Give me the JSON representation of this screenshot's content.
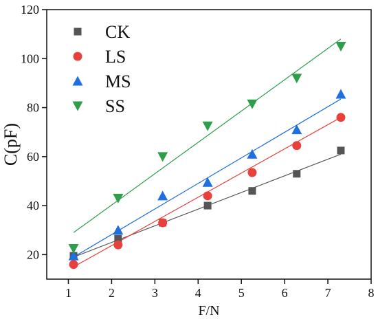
{
  "chart_data": {
    "type": "scatter",
    "xlabel": "F/N",
    "ylabel": "C(pF)",
    "xlim": [
      0.5,
      8
    ],
    "ylim": [
      10,
      120
    ],
    "x_ticks": [
      1,
      2,
      3,
      4,
      5,
      6,
      7,
      8
    ],
    "y_ticks": [
      20,
      40,
      60,
      80,
      100,
      120
    ],
    "legend_position": "top-left",
    "grid": false,
    "series": [
      {
        "name": "CK",
        "color": "#555555",
        "marker": "square",
        "x": [
          1.12,
          2.15,
          3.18,
          4.22,
          5.25,
          6.28,
          7.3
        ],
        "y": [
          19.5,
          26.5,
          33,
          40,
          46,
          53,
          62.5
        ],
        "fit": [
          [
            1.12,
            19
          ],
          [
            7.3,
            61
          ]
        ]
      },
      {
        "name": "LS",
        "color": "#e8413b",
        "marker": "circle",
        "x": [
          1.12,
          2.15,
          3.18,
          4.22,
          5.25,
          6.28,
          7.3
        ],
        "y": [
          16,
          24,
          33,
          44,
          53.5,
          64.5,
          76
        ],
        "fit": [
          [
            1.12,
            15
          ],
          [
            7.3,
            76
          ]
        ]
      },
      {
        "name": "MS",
        "color": "#1f6fe0",
        "marker": "triangle-up",
        "x": [
          1.12,
          2.15,
          3.18,
          4.22,
          5.25,
          6.28,
          7.3
        ],
        "y": [
          19.5,
          30,
          44,
          49.5,
          61,
          71,
          85.5
        ],
        "fit": [
          [
            1.12,
            19
          ],
          [
            7.3,
            83.5
          ]
        ]
      },
      {
        "name": "SS",
        "color": "#2e9e4b",
        "marker": "triangle-down",
        "x": [
          1.12,
          2.15,
          3.18,
          4.22,
          5.25,
          6.28,
          7.3
        ],
        "y": [
          22.5,
          43,
          60,
          72.5,
          81.5,
          92,
          105
        ],
        "fit": [
          [
            1.12,
            29
          ],
          [
            7.3,
            108
          ]
        ]
      }
    ]
  }
}
